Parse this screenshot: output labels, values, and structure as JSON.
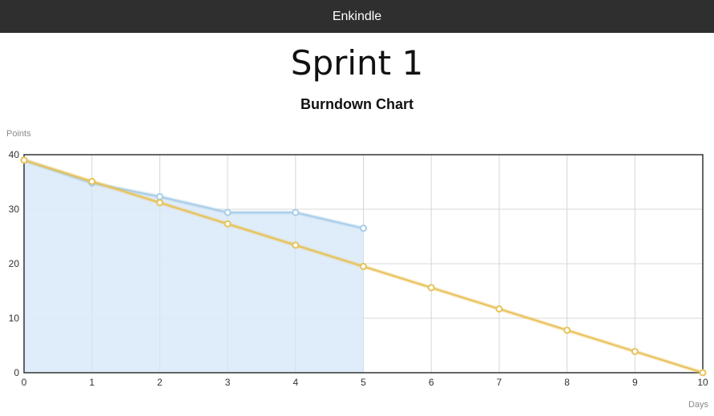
{
  "navbar": {
    "brand": "Enkindle"
  },
  "page": {
    "title": "Sprint 1"
  },
  "chart_data": {
    "type": "line",
    "title": "Burndown Chart",
    "xlabel": "Days",
    "ylabel": "Points",
    "xlim": [
      0,
      10
    ],
    "ylim": [
      0,
      40
    ],
    "x_ticks": [
      0,
      1,
      2,
      3,
      4,
      5,
      6,
      7,
      8,
      9,
      10
    ],
    "y_ticks": [
      0,
      10,
      20,
      30,
      40
    ],
    "grid": true,
    "series": [
      {
        "color": "#a8cde8",
        "fill": "#dbeaf8",
        "area": true,
        "x": [
          0,
          1,
          2,
          3,
          4,
          5
        ],
        "values": [
          39,
          34.8,
          32.3,
          29.4,
          29.4,
          26.5
        ]
      },
      {
        "color": "#e7c25a",
        "area": false,
        "x": [
          0,
          1,
          2,
          3,
          4,
          5,
          6,
          7,
          8,
          9,
          10
        ],
        "values": [
          39,
          35.1,
          31.2,
          27.3,
          23.4,
          19.5,
          15.6,
          11.7,
          7.8,
          3.9,
          0
        ]
      }
    ]
  }
}
